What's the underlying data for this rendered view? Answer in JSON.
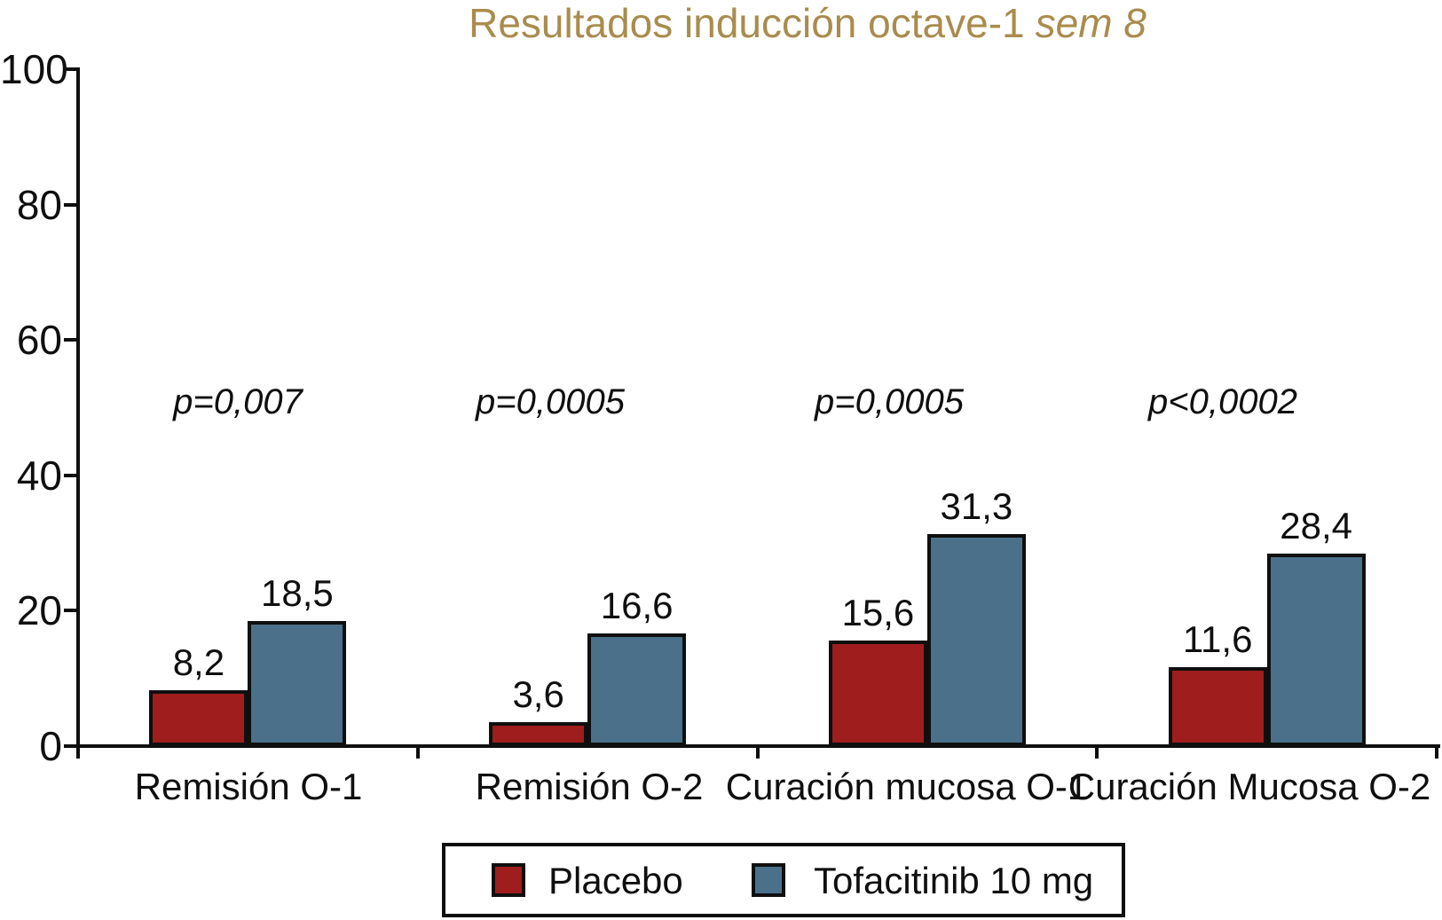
{
  "title": {
    "main": "Resultados inducción octave-1",
    "italic_suffix": "sem 8",
    "color": "#A98C4D"
  },
  "colors": {
    "placebo": "#9F1D1D",
    "tofacitinib": "#4A7189",
    "axis": "#0F0F0F",
    "background": "#FFFFFF"
  },
  "chart_data": {
    "type": "bar",
    "title": "Resultados inducción octave-1 sem 8",
    "categories": [
      "Remisión O-1",
      "Remisión O-2",
      "Curación mucosa O-1",
      "Curación Mucosa O-2"
    ],
    "series": [
      {
        "name": "Placebo",
        "color": "#9F1D1D",
        "values": [
          8.2,
          3.6,
          15.6,
          11.6
        ],
        "value_labels": [
          "8,2",
          "3,6",
          "15,6",
          "11,6"
        ]
      },
      {
        "name": "Tofacitinib 10 mg",
        "color": "#4A7189",
        "values": [
          18.5,
          16.6,
          31.3,
          28.4
        ],
        "value_labels": [
          "18,5",
          "16,6",
          "31,3",
          "28,4"
        ]
      }
    ],
    "p_values": [
      "p=0,007",
      "p=0,0005",
      "p=0,0005",
      "p<0,0002"
    ],
    "xlabel": "",
    "ylabel": "",
    "ylim": [
      0,
      100
    ],
    "yticks": [
      0,
      20,
      40,
      60,
      80,
      100
    ],
    "ytick_labels": [
      "0",
      "20",
      "40",
      "60",
      "80",
      "100"
    ],
    "grid": false,
    "legend_position": "bottom"
  },
  "legend": {
    "entries": [
      {
        "label": "Placebo",
        "color": "#9F1D1D"
      },
      {
        "label": "Tofacitinib 10 mg",
        "color": "#4A7189"
      }
    ]
  }
}
